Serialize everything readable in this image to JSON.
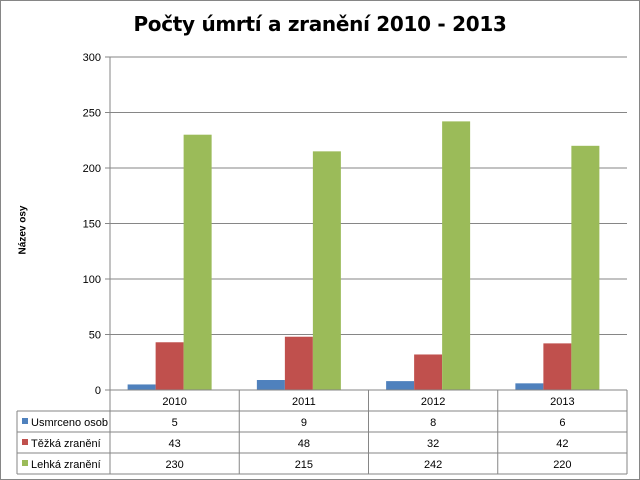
{
  "chart_data": {
    "type": "bar",
    "title": "Počty úmrtí a zranění 2010 - 2013",
    "ylabel": "Název osy",
    "xlabel": "",
    "ylim": [
      0,
      300
    ],
    "yticks": [
      "0",
      "50",
      "100",
      "150",
      "200",
      "250",
      "300"
    ],
    "categories": [
      "2010",
      "2011",
      "2012",
      "2013"
    ],
    "series": [
      {
        "name": "Usmrceno osob",
        "color": "#4f81bd",
        "values": [
          5,
          9,
          8,
          6
        ]
      },
      {
        "name": "Těžká zranění",
        "color": "#c0504d",
        "values": [
          43,
          48,
          32,
          42
        ]
      },
      {
        "name": "Lehká zranění",
        "color": "#9bbb59",
        "values": [
          230,
          215,
          242,
          220
        ]
      }
    ],
    "grid": true,
    "legend": "data-table-bottom"
  }
}
